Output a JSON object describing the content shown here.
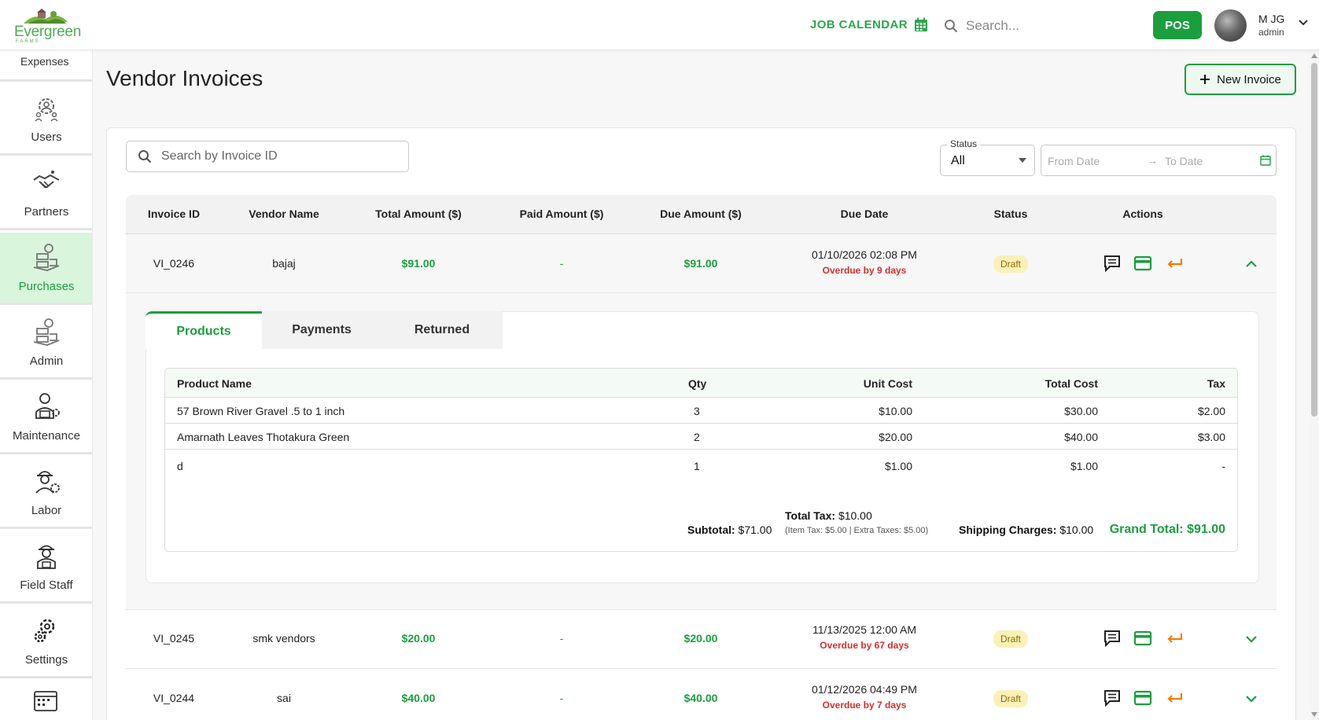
{
  "brand": {
    "name": "Evergreen",
    "sub": "FARMS"
  },
  "header": {
    "job_calendar": "JOB CALENDAR",
    "search_placeholder": "Search...",
    "pos": "POS",
    "user_name": "M JG",
    "user_role": "admin"
  },
  "sidebar": {
    "partial_label": "Expenses",
    "items": [
      {
        "label": "Users",
        "icon": "users-gear-icon"
      },
      {
        "label": "Partners",
        "icon": "handshake-icon"
      },
      {
        "label": "Purchases",
        "icon": "purchases-icon",
        "active": true
      },
      {
        "label": "Admin",
        "icon": "admin-icon"
      },
      {
        "label": "Maintenance",
        "icon": "maintenance-icon"
      },
      {
        "label": "Labor",
        "icon": "labor-icon"
      },
      {
        "label": "Field Staff",
        "icon": "field-staff-icon"
      },
      {
        "label": "Settings",
        "icon": "settings-gear-icon"
      }
    ]
  },
  "page": {
    "title": "Vendor Invoices",
    "new_invoice": "New Invoice"
  },
  "filters": {
    "search_placeholder": "Search by Invoice ID",
    "status_label": "Status",
    "status_value": "All",
    "from_date": "From Date",
    "to_date": "To Date",
    "arrow": "→"
  },
  "table": {
    "headers": [
      "Invoice ID",
      "Vendor Name",
      "Total Amount ($)",
      "Paid Amount ($)",
      "Due Amount ($)",
      "Due Date",
      "Status",
      "Actions"
    ],
    "rows": [
      {
        "id": "VI_0246",
        "vendor": "bajaj",
        "total": "$91.00",
        "paid": "-",
        "due": "$91.00",
        "due_date": "01/10/2026 02:08 PM",
        "overdue": "Overdue by 9 days",
        "status": "Draft",
        "expanded": true
      },
      {
        "id": "VI_0245",
        "vendor": "smk vendors",
        "total": "$20.00",
        "paid": "-",
        "due": "$20.00",
        "due_date": "11/13/2025 12:00 AM",
        "overdue": "Overdue by 67 days",
        "status": "Draft"
      },
      {
        "id": "VI_0244",
        "vendor": "sai",
        "total": "$40.00",
        "paid": "-",
        "due": "$40.00",
        "due_date": "01/12/2026 04:49 PM",
        "overdue": "Overdue by 7 days",
        "status": "Draft"
      }
    ]
  },
  "detail": {
    "tabs": [
      "Products",
      "Payments",
      "Returned"
    ],
    "headers": [
      "Product Name",
      "Qty",
      "Unit Cost",
      "Total Cost",
      "Tax"
    ],
    "products": [
      {
        "name": "57 Brown River Gravel .5 to 1 inch",
        "qty": "3",
        "unit": "$10.00",
        "total": "$30.00",
        "tax": "$2.00"
      },
      {
        "name": "Amarnath Leaves Thotakura Green",
        "qty": "2",
        "unit": "$20.00",
        "total": "$40.00",
        "tax": "$3.00"
      },
      {
        "name": "d",
        "qty": "1",
        "unit": "$1.00",
        "total": "$1.00",
        "tax": "-"
      }
    ],
    "subtotal_label": "Subtotal:",
    "subtotal": "$71.00",
    "total_tax_label": "Total Tax:",
    "total_tax": "$10.00",
    "tax_breakdown": "(Item Tax: $5.00  |  Extra Taxes: $5.00)",
    "shipping_label": "Shipping Charges:",
    "shipping": "$10.00",
    "grand_total": "Grand Total: $91.00"
  },
  "colors": {
    "accent": "#1b9e3e",
    "overdue": "#d32f2f",
    "draft_badge": "#fbf1b8"
  }
}
